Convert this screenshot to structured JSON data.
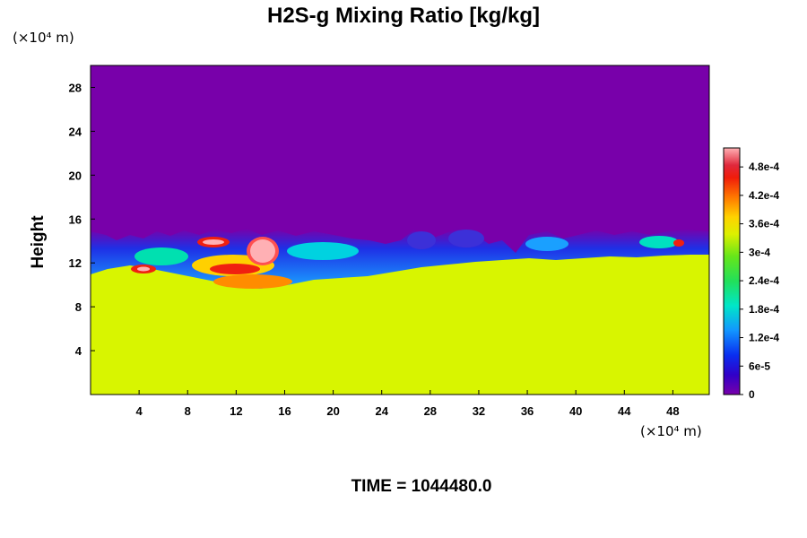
{
  "chart_data": {
    "type": "heatmap",
    "title": "H2S-g Mixing Ratio [kg/kg]",
    "ylabel": "Height",
    "x_unit_label": "(×10⁴ m)",
    "y_unit_label": "(×10⁴ m)",
    "x_ticks": [
      4,
      8,
      12,
      16,
      20,
      24,
      28,
      32,
      36,
      40,
      44,
      48
    ],
    "y_ticks": [
      4,
      8,
      12,
      16,
      20,
      24,
      28
    ],
    "xlim": [
      0,
      51
    ],
    "ylim": [
      0,
      30
    ],
    "colorbar": {
      "range": [
        0,
        0.00052
      ],
      "labels": [
        "0",
        "6e-5",
        "1.2e-4",
        "1.8e-4",
        "2.4e-4",
        "3e-4",
        "3.6e-4",
        "4.2e-4",
        "4.8e-4"
      ],
      "values": [
        0,
        6e-05,
        0.00012,
        0.00018,
        0.00024,
        0.0003,
        0.00036,
        0.00042,
        0.00048
      ]
    },
    "field_summary": {
      "lower_layer_value": 0.00033,
      "upper_layer_value": 0,
      "lower_layer_top_height": [
        11,
        10.5
      ],
      "mixing_layer_top_height": 15
    },
    "footer": "TIME = 1044480.0"
  }
}
